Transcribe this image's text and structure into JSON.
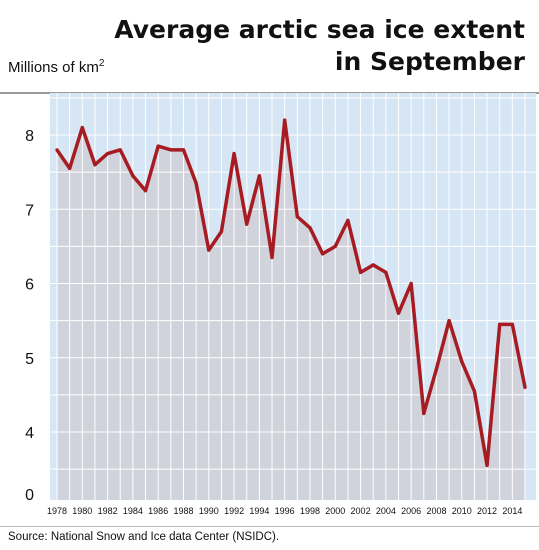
{
  "title_line1": "Average arctic sea ice extent",
  "title_line2": "in September",
  "ylabel_text": "Millions of km",
  "ylabel_sup": "2",
  "source": "Source: National Snow and Ice data Center (NSIDC).",
  "colors": {
    "sky": "#d6e6f4",
    "area": "#d0d2dc",
    "line": "#a61c22",
    "grid": "#ffffff"
  },
  "chart_data": {
    "type": "area",
    "x": [
      1978,
      1979,
      1980,
      1981,
      1982,
      1983,
      1984,
      1985,
      1986,
      1987,
      1988,
      1989,
      1990,
      1991,
      1992,
      1993,
      1994,
      1995,
      1996,
      1997,
      1998,
      1999,
      2000,
      2001,
      2002,
      2003,
      2004,
      2005,
      2006,
      2007,
      2008,
      2009,
      2010,
      2011,
      2012,
      2013,
      2014,
      2015
    ],
    "y": [
      7.8,
      7.55,
      8.1,
      7.6,
      7.75,
      7.8,
      7.45,
      7.25,
      7.85,
      7.8,
      7.8,
      7.35,
      6.45,
      6.7,
      7.75,
      6.8,
      7.45,
      6.35,
      8.2,
      6.9,
      6.75,
      6.4,
      6.5,
      6.85,
      6.15,
      6.25,
      6.15,
      5.6,
      6.0,
      4.25,
      4.85,
      5.5,
      4.95,
      4.55,
      3.55,
      5.45,
      5.45,
      4.6
    ],
    "xticks": [
      "1978",
      "1980",
      "1982",
      "1984",
      "1986",
      "1988",
      "1990",
      "1992",
      "1994",
      "1996",
      "1998",
      "2000",
      "2002",
      "2004",
      "2006",
      "2008",
      "2010",
      "2012",
      "2014"
    ],
    "yticks": [
      "0",
      "4",
      "5",
      "6",
      "7",
      "8"
    ],
    "ylabel": "Millions of km²",
    "grid": true
  }
}
